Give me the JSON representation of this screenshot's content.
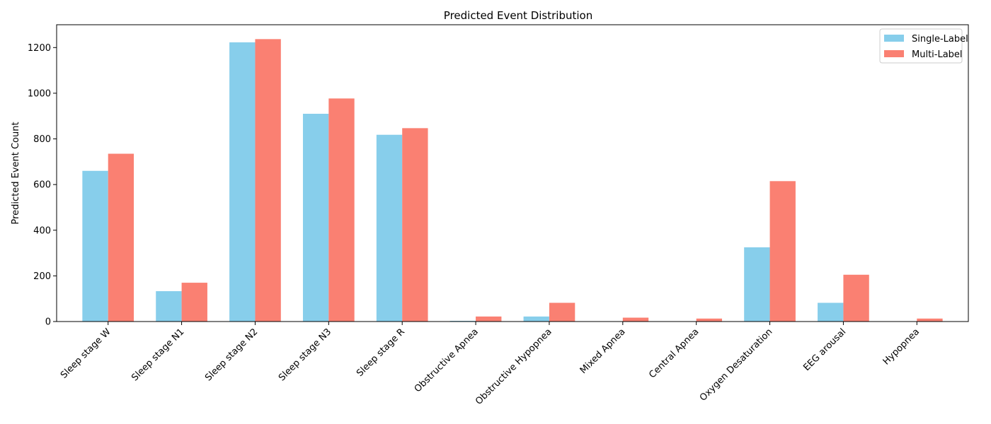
{
  "chart_data": {
    "type": "bar",
    "title": "Predicted Event Distribution",
    "xlabel": "",
    "ylabel": "Predicted Event Count",
    "ylim": [
      0,
      1300
    ],
    "yticks": [
      0,
      200,
      400,
      600,
      800,
      1000,
      1200
    ],
    "legend_position": "top-right",
    "grid": false,
    "categories": [
      "Sleep stage W",
      "Sleep stage N1",
      "Sleep stage N2",
      "Sleep stage N3",
      "Sleep stage R",
      "Obstructive Apnea",
      "Obstructive Hypopnea",
      "Mixed Apnea",
      "Central Apnea",
      "Oxygen Desaturation",
      "EEG arousal",
      "Hypopnea"
    ],
    "series": [
      {
        "name": "Single-Label",
        "color": "#87ceeb",
        "values": [
          660,
          133,
          1223,
          910,
          818,
          3,
          22,
          0,
          0,
          325,
          82,
          0
        ]
      },
      {
        "name": "Multi-Label",
        "color": "#fa8072",
        "values": [
          735,
          170,
          1237,
          977,
          847,
          22,
          82,
          17,
          13,
          615,
          205,
          13
        ]
      }
    ]
  }
}
